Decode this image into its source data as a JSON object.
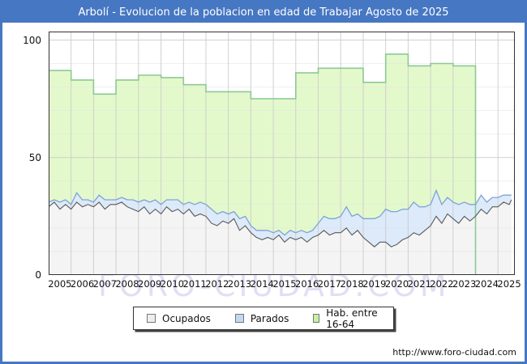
{
  "header": {
    "title": "Arbolí - Evolucion de la poblacion en edad de Trabajar Agosto de 2025"
  },
  "watermark": {
    "text": "FORO-CIUDAD.COM"
  },
  "footer": {
    "url": "http://www.foro-ciudad.com"
  },
  "colors": {
    "frame_blue": "#4677c2",
    "plot_border": "#333333",
    "grid": "#cccccc",
    "grid_minor": "#e2e2e6",
    "hab_fill": "#e4f9cb",
    "hab_line": "#8cc996",
    "parados_fill": "#dceafa",
    "parados_line": "#7da3d8",
    "ocupados_fill": "#f4f4f4",
    "ocupados_line": "#5a5a5a"
  },
  "legend": {
    "items": [
      {
        "label": "Ocupados",
        "swatch": "#ededed"
      },
      {
        "label": "Parados",
        "swatch": "#c3d9f1"
      },
      {
        "label": "Hab. entre 16-64",
        "swatch": "#c9f0a2"
      }
    ]
  },
  "chart_data": {
    "type": "area",
    "title": "Arbolí - Evolucion de la poblacion en edad de Trabajar Agosto de 2025",
    "xlabel": "",
    "ylabel": "",
    "x_labels": [
      "2005",
      "2006",
      "2007",
      "2008",
      "2009",
      "2010",
      "2011",
      "2012",
      "2013",
      "2014",
      "2015",
      "2016",
      "2017",
      "2018",
      "2019",
      "2020",
      "2021",
      "2022",
      "2023",
      "2024",
      "2025"
    ],
    "x_total_years": 20.75,
    "ylim": [
      0,
      103.6
    ],
    "yticks": [
      0,
      50,
      100
    ],
    "grid": true,
    "legend_position": "bottom",
    "hab_16_64": {
      "name": "Hab. entre 16-64",
      "note": "yearly stepped values; series ends at Jan 2024 (no data after 2023)",
      "years": [
        2005,
        2006,
        2007,
        2008,
        2009,
        2010,
        2011,
        2012,
        2013,
        2014,
        2015,
        2016,
        2017,
        2018,
        2019,
        2020,
        2021,
        2022,
        2023
      ],
      "values": [
        87,
        83,
        77,
        83,
        85,
        84,
        81,
        78,
        78,
        75,
        75,
        86,
        88,
        88,
        82,
        94,
        89,
        90,
        89
      ]
    },
    "obs_x_step": 0.25,
    "obs_x_end": 20.6,
    "ocupados": {
      "name": "Ocupados",
      "values": [
        29,
        31,
        28,
        30,
        28,
        31,
        29,
        30,
        29,
        31,
        28,
        30,
        30,
        31,
        29,
        28,
        27,
        29,
        26,
        28,
        26,
        29,
        27,
        28,
        26,
        28,
        25,
        26,
        25,
        22,
        21,
        23,
        22,
        24,
        19,
        21,
        18,
        16,
        15,
        16,
        15,
        17,
        14,
        16,
        15,
        16,
        14,
        16,
        17,
        19,
        17,
        18,
        18,
        20,
        17,
        19,
        16,
        14,
        12,
        14,
        14,
        12,
        13,
        15,
        16,
        18,
        17,
        19,
        21,
        25,
        22,
        26,
        24,
        22,
        25,
        23,
        25,
        28,
        26,
        29,
        29,
        31,
        30,
        32
      ]
    },
    "parados": {
      "name": "Parados",
      "stacked_on": "Ocupados",
      "values": [
        2,
        1,
        3,
        2,
        2,
        4,
        3,
        2,
        2,
        3,
        4,
        2,
        2,
        2,
        3,
        4,
        4,
        3,
        5,
        4,
        4,
        3,
        5,
        4,
        4,
        3,
        5,
        5,
        5,
        6,
        5,
        4,
        4,
        3,
        5,
        4,
        3,
        3,
        4,
        3,
        3,
        2,
        3,
        3,
        3,
        3,
        4,
        3,
        5,
        6,
        7,
        6,
        7,
        9,
        8,
        7,
        8,
        10,
        12,
        11,
        14,
        15,
        14,
        13,
        12,
        13,
        12,
        10,
        9,
        11,
        8,
        7,
        7,
        8,
        6,
        7,
        5,
        6,
        5,
        4,
        4,
        3,
        4,
        2
      ]
    }
  }
}
